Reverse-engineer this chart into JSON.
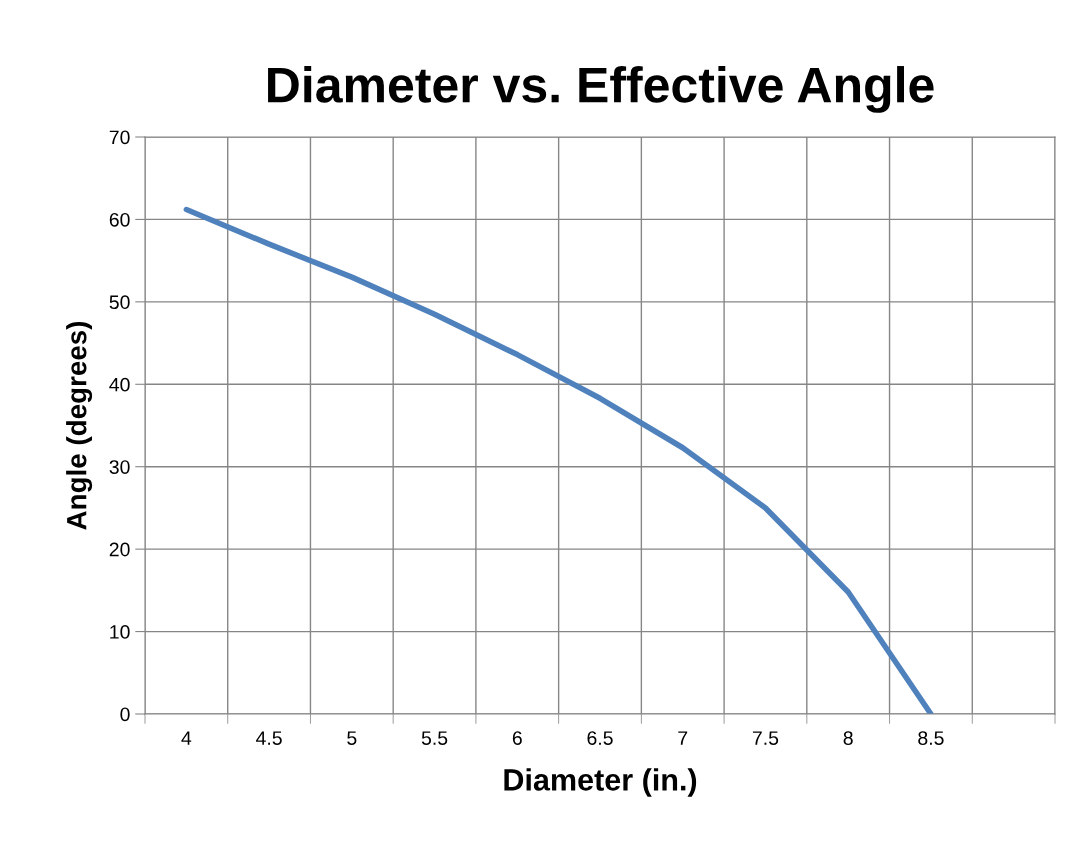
{
  "chart_data": {
    "type": "line",
    "title": "Diameter vs. Effective Angle",
    "xlabel": "Diameter (in.)",
    "ylabel": "Angle (degrees)",
    "categories": [
      "4",
      "4.5",
      "5",
      "5.5",
      "6",
      "6.5",
      "7",
      "7.5",
      "8",
      "8.5",
      null
    ],
    "series": [
      {
        "color": "#4f81bd",
        "values": [
          61.2,
          57.0,
          53.0,
          48.5,
          43.6,
          38.3,
          32.3,
          25.0,
          14.8,
          0,
          null
        ]
      }
    ],
    "ylim": [
      0,
      70
    ],
    "yticks": [
      0,
      10,
      20,
      30,
      40,
      50,
      60,
      70
    ],
    "grid": true,
    "legend": false,
    "marker": "none",
    "line_style": "solid"
  }
}
